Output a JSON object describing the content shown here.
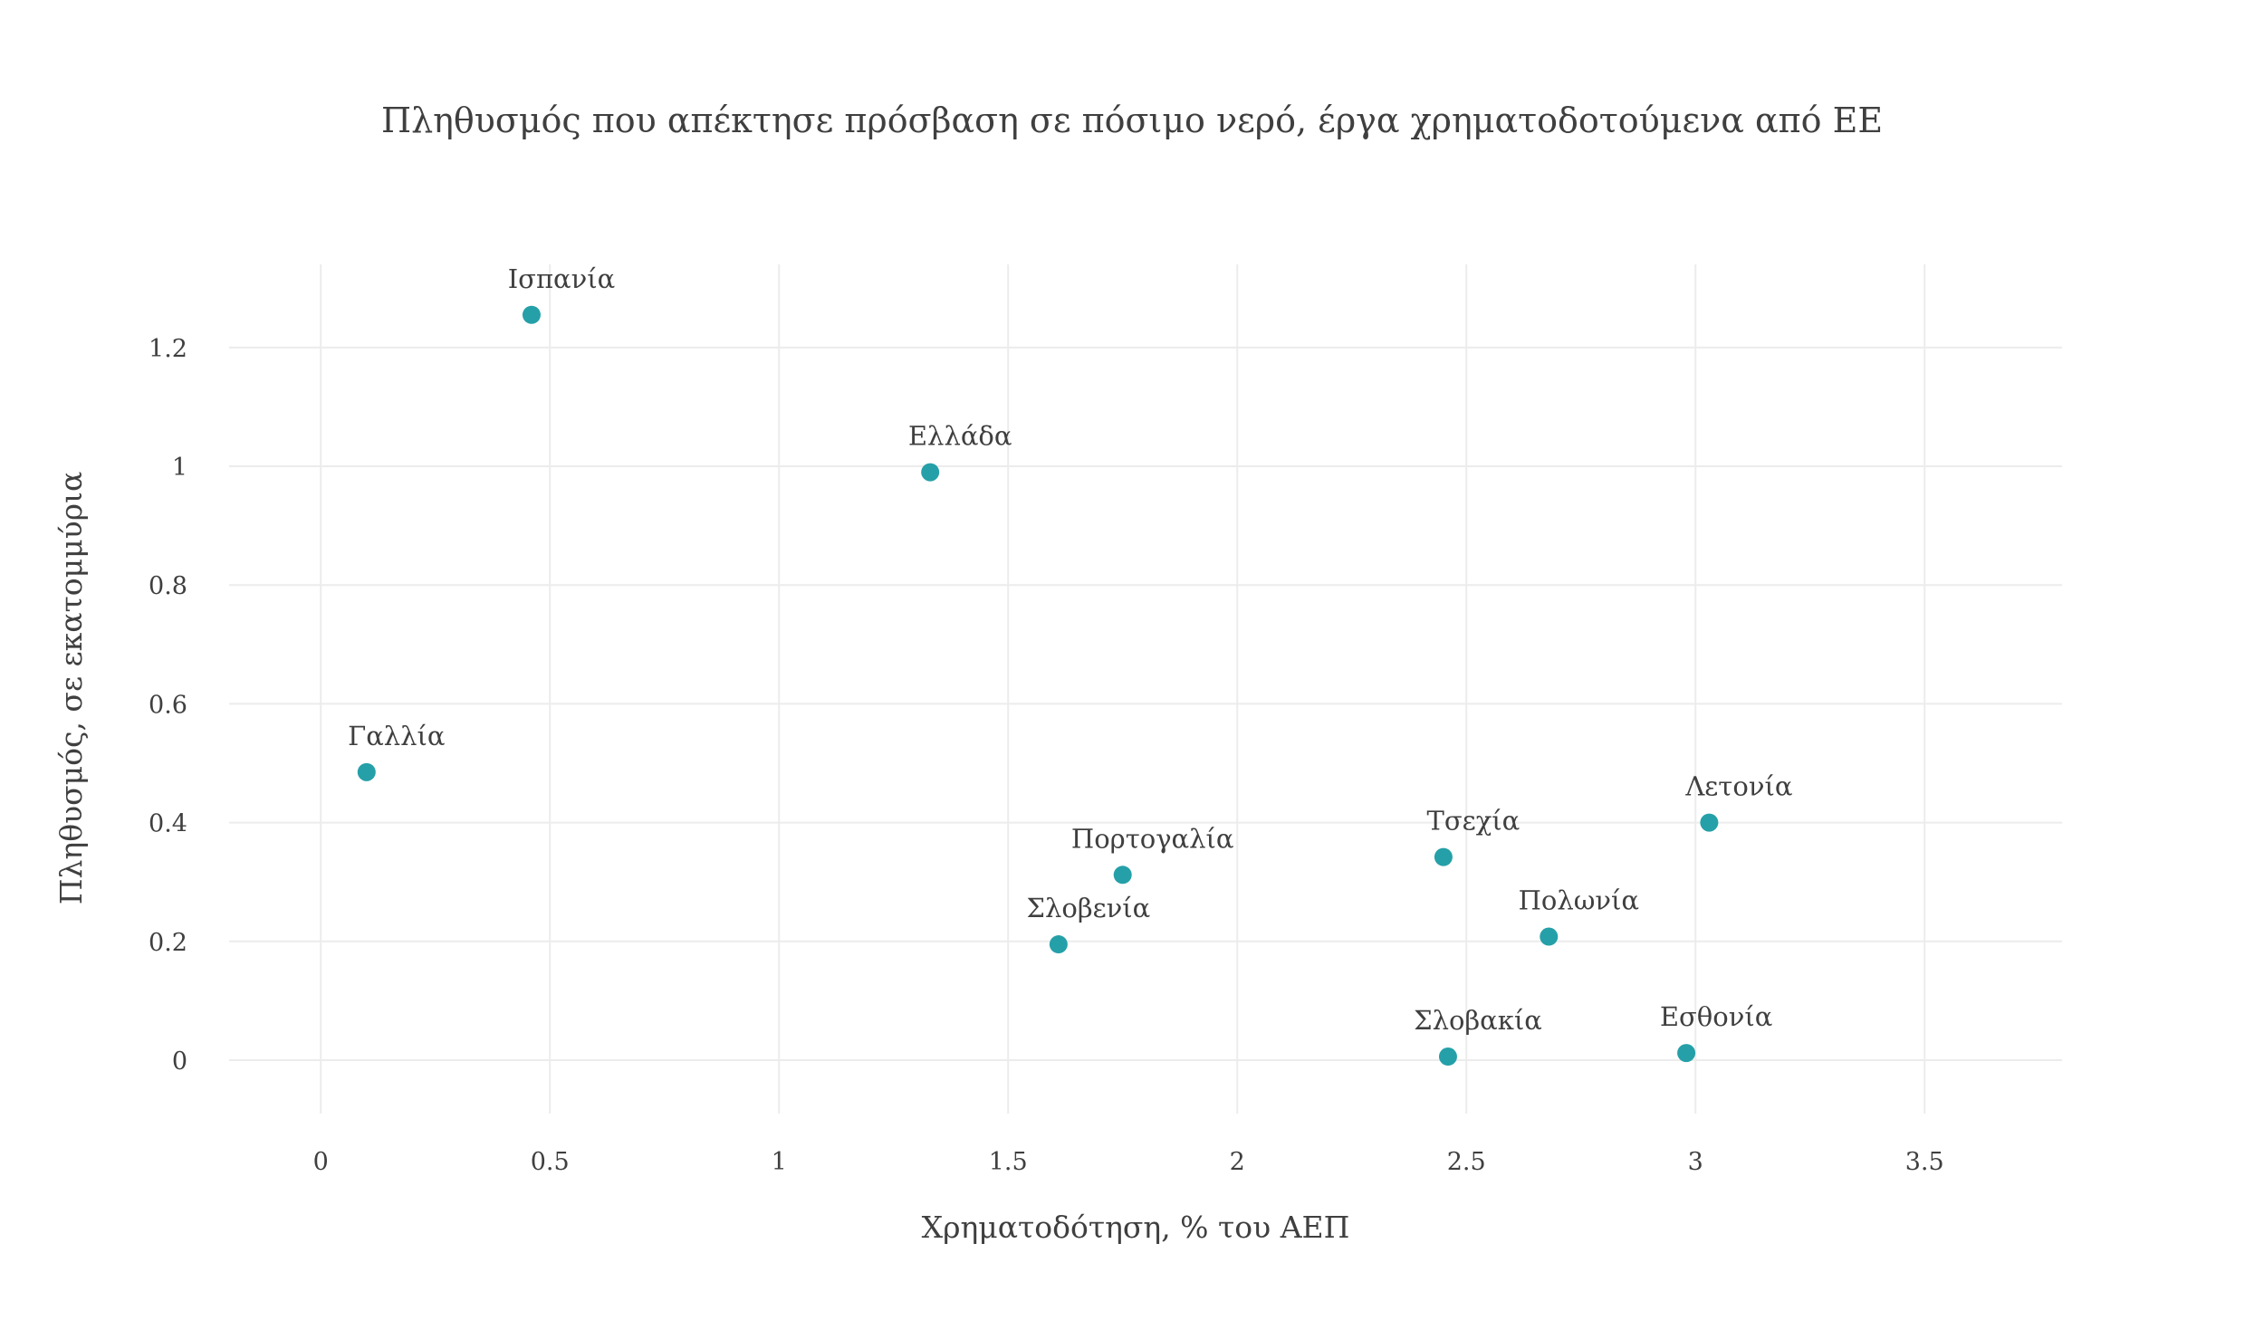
{
  "chart_data": {
    "type": "scatter",
    "title": "Πληθυσμός που απέκτησε πρόσβαση σε πόσιμο νερό, έργα χρηματοδοτούμενα από ΕΕ",
    "xlabel": "Χρηματοδότηση, % του ΑΕΠ",
    "ylabel": "Πληθυσμός, σε εκατομμύρια",
    "xlim": [
      -0.2,
      3.8
    ],
    "ylim": [
      -0.09,
      1.34
    ],
    "x_ticks": [
      0,
      0.5,
      1,
      1.5,
      2,
      2.5,
      3,
      3.5
    ],
    "x_tick_labels": [
      "0",
      "0.5",
      "1",
      "1.5",
      "2",
      "2.5",
      "3",
      "3.5"
    ],
    "y_ticks": [
      0,
      0.2,
      0.4,
      0.6,
      0.8,
      1,
      1.2
    ],
    "y_tick_labels": [
      "0",
      "0.2",
      "0.4",
      "0.6",
      "0.8",
      "1",
      "1.2"
    ],
    "grid": true,
    "color": "#25a0a8",
    "points": [
      {
        "label": "Ισπανία",
        "x": 0.46,
        "y": 1.255
      },
      {
        "label": "Ελλάδα",
        "x": 1.33,
        "y": 0.99
      },
      {
        "label": "Γαλλία",
        "x": 0.1,
        "y": 0.485
      },
      {
        "label": "Πορτογαλία",
        "x": 1.75,
        "y": 0.312
      },
      {
        "label": "Σλοβενία",
        "x": 1.61,
        "y": 0.195
      },
      {
        "label": "Τσεχία",
        "x": 2.45,
        "y": 0.342
      },
      {
        "label": "Λετονία",
        "x": 3.03,
        "y": 0.4
      },
      {
        "label": "Πολωνία",
        "x": 2.68,
        "y": 0.208
      },
      {
        "label": "Σλοβακία",
        "x": 2.46,
        "y": 0.006
      },
      {
        "label": "Εσθονία",
        "x": 2.98,
        "y": 0.012
      }
    ]
  }
}
